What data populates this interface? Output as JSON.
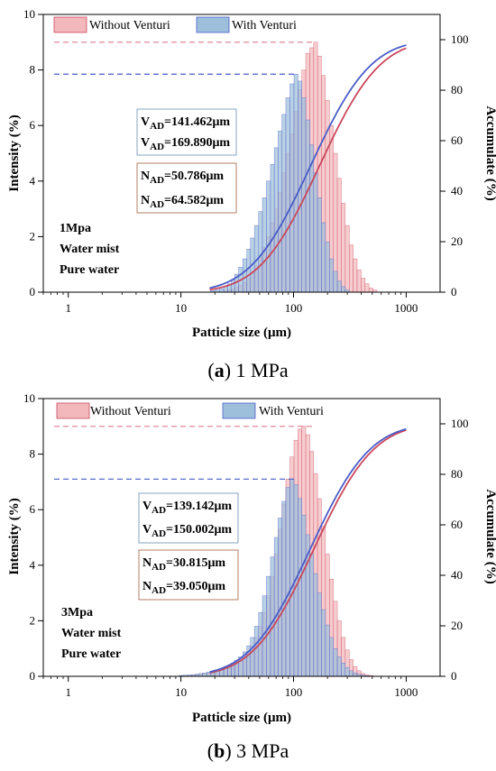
{
  "colors": {
    "without": "#f2b8bc",
    "without_line": "#c8485c",
    "with": "#9ebfdb",
    "with_line": "#4a5cc8",
    "v_box_text_blue": "#4a78c0",
    "v_box_text_brown": "#c07a3a"
  },
  "chart_data": [
    {
      "type": "bar",
      "panel": "a",
      "caption_letter": "a",
      "caption_rest": "1 MPa",
      "xlabel": "Patticle size (μm)",
      "ylabel": "Intensity (%)",
      "y2label": "Accumulate (%)",
      "xscale": "log",
      "xlim": [
        0.6,
        2000
      ],
      "ylim": [
        0,
        10
      ],
      "y2lim": [
        0,
        110
      ],
      "xticks": [
        "1",
        "10",
        "100",
        "1000"
      ],
      "yticks": [
        "0",
        "2",
        "4",
        "6",
        "8",
        "10"
      ],
      "y2ticks": [
        "0",
        "20",
        "40",
        "60",
        "80",
        "100"
      ],
      "legend": [
        "Without Venturi",
        "With Venturi"
      ],
      "annotations": {
        "v_with_label": "V",
        "v_with_sub": "AD",
        "v_with_value": "=141.462μm",
        "v_without_label": "V",
        "v_without_sub": "AD",
        "v_without_value": "=169.890μm",
        "n_with_label": "N",
        "n_with_sub": "AD",
        "n_with_value": "=50.786μm",
        "n_without_label": "N",
        "n_without_sub": "AD",
        "n_without_value": "=64.582μm",
        "cond1": "1Mpa",
        "cond2": "Water mist",
        "cond3": "Pure water"
      },
      "peak_without": 9.0,
      "peak_with": 7.85,
      "series": [
        {
          "name": "Without Venturi",
          "bins": [
            25,
            27,
            29,
            31,
            34,
            37,
            40,
            43,
            47,
            51,
            55,
            60,
            65,
            70,
            76,
            82,
            89,
            97,
            105,
            114,
            123,
            134,
            145,
            157,
            170,
            184,
            200,
            217,
            235,
            255,
            276,
            300,
            325,
            352,
            382,
            414,
            449,
            487,
            528
          ],
          "values": [
            0.05,
            0.08,
            0.12,
            0.18,
            0.25,
            0.35,
            0.5,
            0.7,
            0.95,
            1.25,
            1.6,
            2.0,
            2.5,
            3.0,
            3.6,
            4.3,
            5.0,
            5.7,
            6.5,
            7.3,
            8.0,
            8.6,
            8.8,
            9.0,
            8.5,
            7.8,
            6.9,
            6.0,
            5.0,
            4.1,
            3.2,
            2.4,
            1.7,
            1.2,
            0.8,
            0.5,
            0.3,
            0.15,
            0.08
          ]
        },
        {
          "name": "With Venturi",
          "bins": [
            19,
            21,
            23,
            25,
            27,
            29,
            31,
            34,
            37,
            40,
            43,
            47,
            51,
            55,
            60,
            65,
            70,
            76,
            82,
            89,
            97,
            105,
            114,
            123,
            134,
            145,
            157,
            170,
            184,
            200,
            217,
            235,
            255,
            276,
            300
          ],
          "values": [
            0.05,
            0.08,
            0.12,
            0.2,
            0.3,
            0.45,
            0.65,
            0.9,
            1.2,
            1.55,
            1.95,
            2.4,
            2.9,
            3.4,
            4.0,
            4.6,
            5.2,
            5.8,
            6.4,
            7.0,
            7.5,
            7.85,
            7.6,
            7.0,
            6.2,
            5.3,
            4.3,
            3.4,
            2.5,
            1.8,
            1.2,
            0.75,
            0.4,
            0.2,
            0.08
          ]
        }
      ],
      "cumulative": [
        {
          "name": "Without Venturi",
          "d50": 169.89,
          "spread": 0.42
        },
        {
          "name": "With Venturi",
          "d50": 141.462,
          "spread": 0.42
        }
      ]
    },
    {
      "type": "bar",
      "panel": "b",
      "caption_letter": "b",
      "caption_rest": "3 MPa",
      "xlabel": "Patticle size (μm)",
      "ylabel": "Intensity (%)",
      "y2label": "Accumulate (%)",
      "xscale": "log",
      "xlim": [
        0.6,
        2000
      ],
      "ylim": [
        0,
        10
      ],
      "y2lim": [
        0,
        110
      ],
      "xticks": [
        "1",
        "10",
        "100",
        "1000"
      ],
      "yticks": [
        "0",
        "2",
        "4",
        "6",
        "8",
        "10"
      ],
      "y2ticks": [
        "0",
        "20",
        "40",
        "60",
        "80",
        "100"
      ],
      "legend": [
        "Without Venturi",
        "With Venturi"
      ],
      "annotations": {
        "v_with_label": "V",
        "v_with_sub": "AD",
        "v_with_value": "=139.142μm",
        "v_without_label": "V",
        "v_without_sub": "AD",
        "v_without_value": "=150.002μm",
        "n_with_label": "N",
        "n_with_sub": "AD",
        "n_with_value": "=30.815μm",
        "n_without_label": "N",
        "n_without_sub": "AD",
        "n_without_value": "=39.050μm",
        "cond1": "3Mpa",
        "cond2": "Water mist",
        "cond3": "Pure water"
      },
      "peak_without": 9.0,
      "peak_with": 7.1,
      "series": [
        {
          "name": "Without Venturi",
          "bins": [
            10,
            11,
            12,
            13,
            14,
            15,
            16,
            18,
            19,
            21,
            23,
            25,
            27,
            29,
            31,
            34,
            37,
            40,
            43,
            47,
            51,
            55,
            60,
            65,
            70,
            76,
            82,
            89,
            97,
            105,
            114,
            123,
            134,
            145,
            157,
            170,
            184,
            200,
            217,
            235,
            255,
            276,
            300,
            325,
            352,
            382,
            414,
            449,
            487,
            528
          ],
          "values": [
            0.02,
            0.03,
            0.04,
            0.05,
            0.06,
            0.08,
            0.1,
            0.12,
            0.15,
            0.18,
            0.22,
            0.27,
            0.32,
            0.38,
            0.45,
            0.55,
            0.7,
            0.9,
            1.1,
            1.4,
            1.8,
            2.3,
            2.9,
            3.6,
            4.4,
            5.3,
            6.2,
            7.1,
            7.9,
            8.5,
            8.9,
            9.0,
            8.7,
            8.1,
            7.3,
            6.4,
            5.4,
            4.4,
            3.5,
            2.7,
            2.0,
            1.4,
            0.95,
            0.6,
            0.35,
            0.2,
            0.1,
            0.05,
            0.03,
            0.01
          ]
        },
        {
          "name": "With Venturi",
          "bins": [
            10,
            11,
            12,
            13,
            14,
            15,
            16,
            18,
            19,
            21,
            23,
            25,
            27,
            29,
            31,
            34,
            37,
            40,
            43,
            47,
            51,
            55,
            60,
            65,
            70,
            76,
            82,
            89,
            97,
            105,
            114,
            123,
            134,
            145,
            157,
            170,
            184,
            200,
            217,
            235,
            255,
            276,
            300,
            325,
            352,
            382,
            414,
            449,
            487
          ],
          "values": [
            0.03,
            0.04,
            0.05,
            0.06,
            0.08,
            0.1,
            0.12,
            0.15,
            0.19,
            0.23,
            0.28,
            0.34,
            0.4,
            0.48,
            0.58,
            0.7,
            0.88,
            1.1,
            1.4,
            1.8,
            2.3,
            2.9,
            3.6,
            4.3,
            5.0,
            5.7,
            6.3,
            6.8,
            7.1,
            6.9,
            6.4,
            5.8,
            5.1,
            4.4,
            3.7,
            3.0,
            2.4,
            1.85,
            1.4,
            1.0,
            0.7,
            0.48,
            0.32,
            0.2,
            0.12,
            0.07,
            0.04,
            0.02,
            0.01
          ]
        }
      ],
      "cumulative": [
        {
          "name": "Without Venturi",
          "d50": 150.002,
          "spread": 0.42
        },
        {
          "name": "With Venturi",
          "d50": 139.142,
          "spread": 0.42
        }
      ]
    }
  ]
}
